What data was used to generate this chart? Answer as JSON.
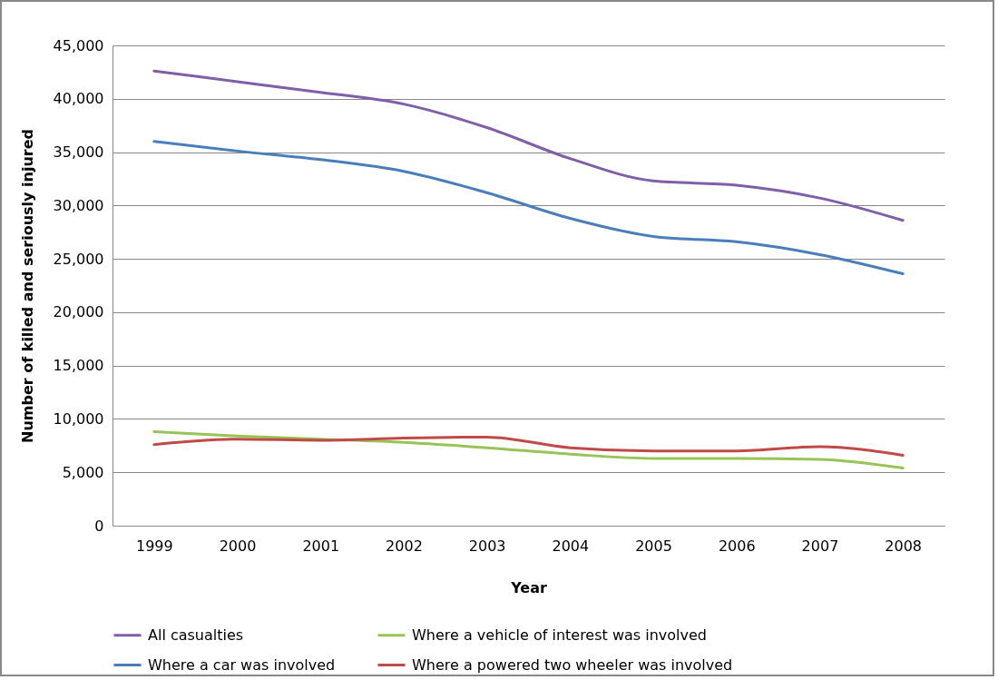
{
  "chart_data": {
    "type": "line",
    "xlabel": "Year",
    "ylabel": "Number of killed and seriously injured",
    "categories": [
      "1999",
      "2000",
      "2001",
      "2002",
      "2003",
      "2004",
      "2005",
      "2006",
      "2007",
      "2008"
    ],
    "series": [
      {
        "name": "All casualties",
        "color": "#7e5fa8",
        "values": [
          42600,
          41600,
          40600,
          39500,
          37300,
          34400,
          32300,
          31900,
          30700,
          28600
        ]
      },
      {
        "name": "Where a vehicle of interest was involved",
        "color": "#98c356",
        "values": [
          8800,
          8400,
          8100,
          7800,
          7300,
          6700,
          6300,
          6300,
          6200,
          5400
        ]
      },
      {
        "name": "Where a car was involved",
        "color": "#4a7ebb",
        "values": [
          36000,
          35100,
          34300,
          33200,
          31200,
          28800,
          27100,
          26600,
          25400,
          23600
        ]
      },
      {
        "name": "Where a powered two wheeler was involved",
        "color": "#be4b48",
        "values": [
          7600,
          8100,
          8000,
          8200,
          8300,
          7300,
          7000,
          7000,
          7400,
          6600
        ]
      }
    ],
    "ylim": [
      0,
      45000
    ],
    "yticks": [
      0,
      {
        "value": 5000,
        "label": "5,000"
      },
      {
        "value": 10000,
        "label": "10,000"
      },
      {
        "value": 15000,
        "label": "15,000"
      },
      {
        "value": 20000,
        "label": "20,000"
      },
      {
        "value": 25000,
        "label": "25,000"
      },
      {
        "value": 30000,
        "label": "30,000"
      },
      {
        "value": 35000,
        "label": "35,000"
      },
      {
        "value": 40000,
        "label": "40,000"
      },
      {
        "value": 45000,
        "label": "45,000"
      }
    ],
    "grid": "y",
    "legend": "bottom",
    "marker": "none",
    "line_style": "solid"
  }
}
